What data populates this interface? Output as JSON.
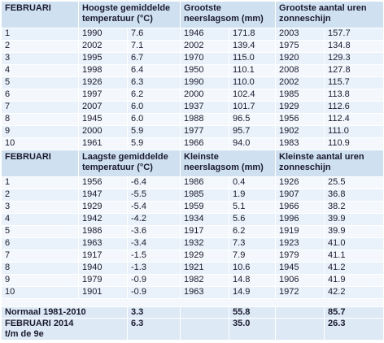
{
  "tables": [
    {
      "header": [
        "FEBRUARI",
        "Hoogste gemiddelde temperatuur (°C)",
        "Grootste neerslagsom (mm)",
        "Grootste aantal uren zonneschijn"
      ],
      "rows": [
        [
          "1",
          "1990",
          "7.6",
          "1946",
          "171.8",
          "2003",
          "157.7"
        ],
        [
          "2",
          "2002",
          "7.1",
          "2002",
          "139.4",
          "1975",
          "134.8"
        ],
        [
          "3",
          "1995",
          "6.7",
          "1970",
          "115.0",
          "1920",
          "129.3"
        ],
        [
          "4",
          "1998",
          "6.4",
          "1950",
          "110.1",
          "2008",
          "127.8"
        ],
        [
          "5",
          "1926",
          "6.3",
          "1990",
          "110.0",
          "2002",
          "115.7"
        ],
        [
          "6",
          "1997",
          "6.2",
          "2000",
          "102.4",
          "1985",
          "113.8"
        ],
        [
          "7",
          "2007",
          "6.0",
          "1937",
          "101.7",
          "1929",
          "112.6"
        ],
        [
          "8",
          "1945",
          "6.0",
          "1988",
          "96.5",
          "1956",
          "112.4"
        ],
        [
          "9",
          "2000",
          "5.9",
          "1977",
          "95.7",
          "1902",
          "111.0"
        ],
        [
          "10",
          "1961",
          "5.9",
          "1966",
          "94.0",
          "1983",
          "110.9"
        ]
      ]
    },
    {
      "header": [
        "FEBRUARI",
        "Laagste gemiddelde temperatuur (°C)",
        "Kleinste neerslagsom (mm)",
        "Kleinste aantal uren zonneschijn"
      ],
      "rows": [
        [
          "1",
          "1956",
          "-6.4",
          "1986",
          "0.4",
          "1926",
          "25.5"
        ],
        [
          "2",
          "1947",
          "-5.5",
          "1985",
          "1.9",
          "1907",
          "36.8"
        ],
        [
          "3",
          "1929",
          "-5.4",
          "1959",
          "5.1",
          "1966",
          "38.2"
        ],
        [
          "4",
          "1942",
          "-4.2",
          "1934",
          "5.6",
          "1996",
          "39.9"
        ],
        [
          "5",
          "1986",
          "-3.6",
          "1917",
          "6.2",
          "1919",
          "39.9"
        ],
        [
          "6",
          "1963",
          "-3.4",
          "1932",
          "7.3",
          "1923",
          "41.0"
        ],
        [
          "7",
          "1917",
          "-1.5",
          "1929",
          "7.9",
          "1979",
          "41.1"
        ],
        [
          "8",
          "1940",
          "-1.3",
          "1921",
          "10.6",
          "1945",
          "41.2"
        ],
        [
          "9",
          "1979",
          "-0.9",
          "1982",
          "14.8",
          "1906",
          "41.9"
        ],
        [
          "10",
          "1901",
          "-0.9",
          "1963",
          "14.9",
          "1972",
          "42.2"
        ]
      ]
    }
  ],
  "summary": [
    {
      "label_lines": [
        "Normaal 1981-2010"
      ],
      "values": [
        "3.3",
        "55.8",
        "85.7"
      ]
    },
    {
      "label_lines": [
        "FEBRUARI 2014",
        "t/m de 9e"
      ],
      "values": [
        "6.3",
        "35.0",
        "26.3"
      ]
    }
  ]
}
